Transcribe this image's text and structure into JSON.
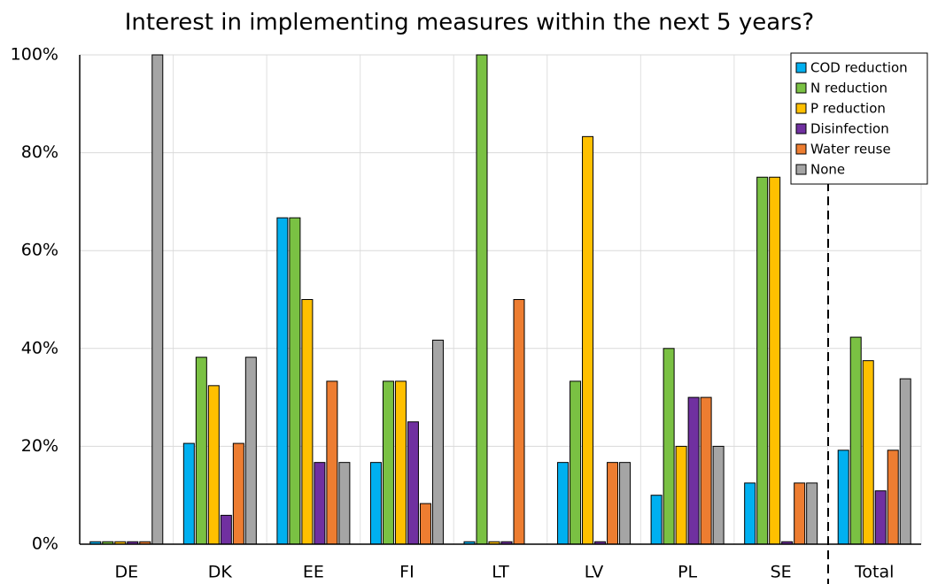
{
  "chart_data": {
    "type": "bar",
    "title": "Interest in implementing measures within the next 5 years?",
    "categories": [
      "DE",
      "DK",
      "EE",
      "FI",
      "LT",
      "LV",
      "PL",
      "SE",
      "Total"
    ],
    "series": [
      {
        "name": "COD reduction",
        "color": "#00b0f0",
        "values": [
          0.5,
          20.6,
          66.7,
          16.7,
          0.5,
          16.7,
          10,
          12.5,
          19.2
        ]
      },
      {
        "name": "N reduction",
        "color": "#7ac143",
        "values": [
          0.5,
          38.2,
          66.7,
          33.3,
          100,
          33.3,
          40,
          75,
          42.3
        ]
      },
      {
        "name": "P reduction",
        "color": "#ffc000",
        "values": [
          0.5,
          32.4,
          50,
          33.3,
          0.5,
          83.3,
          20,
          75,
          37.5
        ]
      },
      {
        "name": "Disinfection",
        "color": "#7030a0",
        "values": [
          0.5,
          5.9,
          16.7,
          25,
          0.5,
          0.5,
          30,
          0.5,
          10.9
        ]
      },
      {
        "name": "Water reuse",
        "color": "#ed7d31",
        "values": [
          0.5,
          20.6,
          33.3,
          8.3,
          50,
          16.7,
          30,
          12.5,
          19.2
        ]
      },
      {
        "name": "None",
        "color": "#a5a5a5",
        "values": [
          100,
          38.2,
          16.7,
          41.7,
          null,
          16.7,
          20,
          12.5,
          33.8
        ]
      }
    ],
    "ylim": [
      0,
      100
    ],
    "yticks": [
      {
        "value": 0,
        "label": "0%"
      },
      {
        "value": 20,
        "label": "20%"
      },
      {
        "value": 40,
        "label": "40%"
      },
      {
        "value": 60,
        "label": "60%"
      },
      {
        "value": 80,
        "label": "80%"
      },
      {
        "value": 100,
        "label": "100%"
      }
    ],
    "grid": true,
    "legend": "top-right"
  }
}
